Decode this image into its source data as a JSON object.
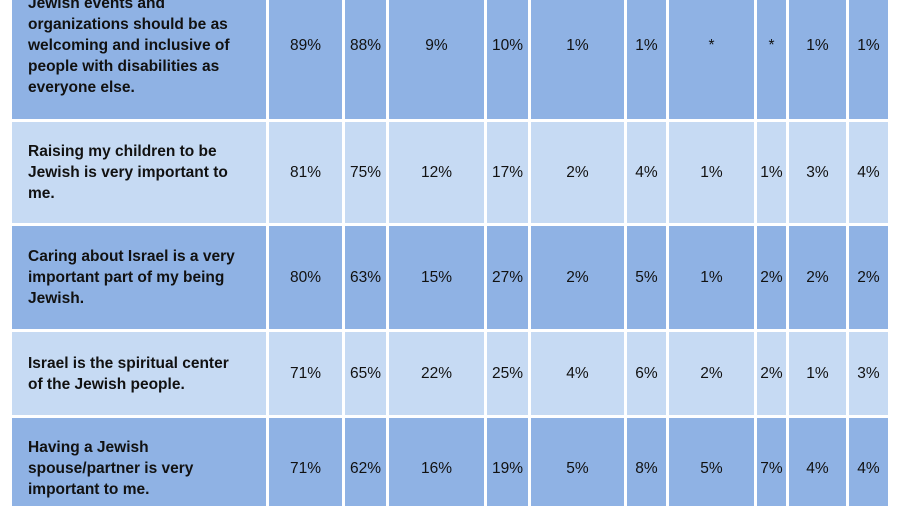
{
  "chart_data": {
    "type": "table",
    "columns": 10,
    "rows": [
      {
        "statement": "Jewish events and\norganizations should be as\nwelcoming and inclusive of\npeople with disabilities as\neveryone else.",
        "values": [
          "89%",
          "88%",
          "9%",
          "10%",
          "1%",
          "1%",
          "*",
          "*",
          "1%",
          "1%"
        ]
      },
      {
        "statement": "Raising my children to be\nJewish is very important to\nme.",
        "values": [
          "81%",
          "75%",
          "12%",
          "17%",
          "2%",
          "4%",
          "1%",
          "1%",
          "3%",
          "4%"
        ]
      },
      {
        "statement": "Caring about Israel is a very\nimportant part of my being\nJewish.",
        "values": [
          "80%",
          "63%",
          "15%",
          "27%",
          "2%",
          "5%",
          "1%",
          "2%",
          "2%",
          "2%"
        ]
      },
      {
        "statement": "Israel is the spiritual center\nof the Jewish people.",
        "values": [
          "71%",
          "65%",
          "22%",
          "25%",
          "4%",
          "6%",
          "2%",
          "2%",
          "1%",
          "3%"
        ]
      },
      {
        "statement": "Having a Jewish\nspouse/partner is very\nimportant to me.",
        "values": [
          "71%",
          "62%",
          "16%",
          "19%",
          "5%",
          "8%",
          "5%",
          "7%",
          "4%",
          "4%"
        ]
      }
    ]
  },
  "colors": {
    "dark_row": "#8fb2e4",
    "light_row": "#c6daf3",
    "grid": "#ffffff",
    "text": "#111111"
  }
}
